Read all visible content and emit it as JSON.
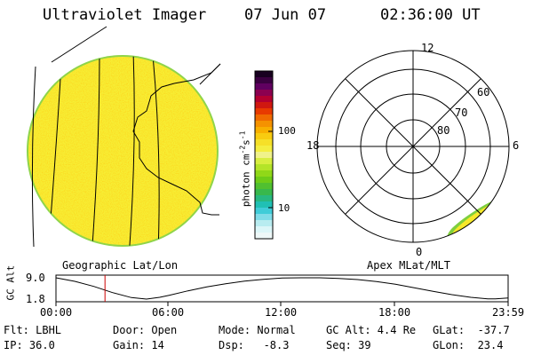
{
  "header": {
    "instrument": "Ultraviolet Imager",
    "date": "07 Jun 07",
    "time": "02:36:00 UT"
  },
  "colorbar": {
    "label": "photon cm",
    "label_exp1": "-2",
    "label_mid": "s",
    "label_exp2": "-1",
    "ticks": [
      {
        "label": "100",
        "value": 100
      },
      {
        "label": "10",
        "value": 10
      }
    ],
    "scale": "log"
  },
  "left_map": {
    "caption": "Geographic Lat/Lon",
    "colors": {
      "fill": "#f7ee34",
      "edge": "#9ed94a"
    }
  },
  "polar_map": {
    "caption": "Apex MLat/MLT",
    "mlt_labels": [
      "12",
      "18",
      "6",
      "0"
    ],
    "lat_labels": [
      "60",
      "70",
      "80"
    ],
    "colors": {
      "fill": "#f5ee30",
      "edge": "#7fcf3e"
    }
  },
  "chart_data": {
    "type": "line",
    "ylabel": "GC Alt",
    "yticks": [
      "9.0",
      "1.8"
    ],
    "ylim": [
      1.8,
      9.0
    ],
    "xticks": [
      "00:00",
      "06:00",
      "12:00",
      "18:00",
      "23:59"
    ],
    "xlim_hours": [
      0,
      23.98
    ],
    "series": [
      {
        "x_hours": [
          0,
          1,
          2,
          3,
          4,
          4.8,
          5.5,
          6,
          7,
          8,
          9,
          10,
          11,
          12,
          13,
          14,
          15,
          16,
          17,
          18,
          19,
          20,
          21,
          22,
          22.9,
          23.3,
          23.98
        ],
        "y": [
          9.0,
          7.8,
          6.1,
          4.0,
          2.3,
          1.8,
          2.4,
          3.1,
          4.6,
          5.9,
          7.0,
          7.9,
          8.5,
          8.9,
          9.0,
          9.0,
          8.8,
          8.4,
          7.7,
          6.8,
          5.6,
          4.4,
          3.3,
          2.4,
          1.9,
          1.9,
          2.2
        ]
      }
    ],
    "current_time_hours": 2.6,
    "colors": {
      "line": "#000000",
      "marker": "#cc0000"
    }
  },
  "status": {
    "filter": "Flt: LBHL",
    "ip": "IP: 36.0",
    "door": "Door: Open",
    "gain": "Gain: 14",
    "mode": "Mode: Normal",
    "dsp": "Dsp:   -8.3",
    "gc_alt": "GC Alt: 4.4 Re",
    "seq": "Seq: 39",
    "glat": "GLat:  -37.7",
    "glon": "GLon:  23.4"
  }
}
